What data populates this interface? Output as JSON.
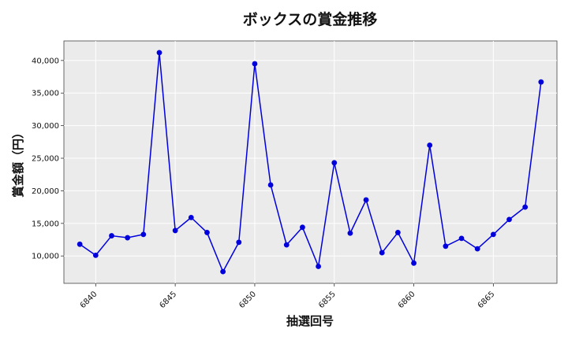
{
  "chart_data": {
    "type": "line",
    "title": "ボックスの賞金推移",
    "xlabel": "抽選回号",
    "ylabel": "賞金額（円）",
    "xlim": [
      6838,
      6869
    ],
    "ylim": [
      5800,
      43000
    ],
    "grid": true,
    "x_ticks": [
      6840,
      6845,
      6850,
      6855,
      6860,
      6865
    ],
    "x_tick_labels": [
      "6840",
      "6845",
      "6850",
      "6855",
      "6860",
      "6865"
    ],
    "y_ticks": [
      10000,
      15000,
      20000,
      25000,
      30000,
      35000,
      40000
    ],
    "y_tick_labels": [
      "10,000",
      "15,000",
      "20,000",
      "25,000",
      "30,000",
      "35,000",
      "40,000"
    ],
    "line_color": "#0000dd",
    "plot_background": "#ebebeb",
    "series": [
      {
        "x": [
          6839,
          6840,
          6841,
          6842,
          6843,
          6844,
          6845,
          6846,
          6847,
          6848,
          6849,
          6850,
          6851,
          6852,
          6853,
          6854,
          6855,
          6856,
          6857,
          6858,
          6859,
          6860,
          6861,
          6862,
          6863,
          6864,
          6865,
          6866,
          6867,
          6868
        ],
        "values": [
          11800,
          10100,
          13100,
          12800,
          13300,
          41200,
          13900,
          15900,
          13600,
          7600,
          12100,
          39500,
          20900,
          11700,
          14400,
          8400,
          24300,
          13500,
          18600,
          10500,
          13600,
          8900,
          27000,
          11500,
          12700,
          11100,
          13300,
          15600,
          17500,
          36700
        ]
      }
    ]
  }
}
